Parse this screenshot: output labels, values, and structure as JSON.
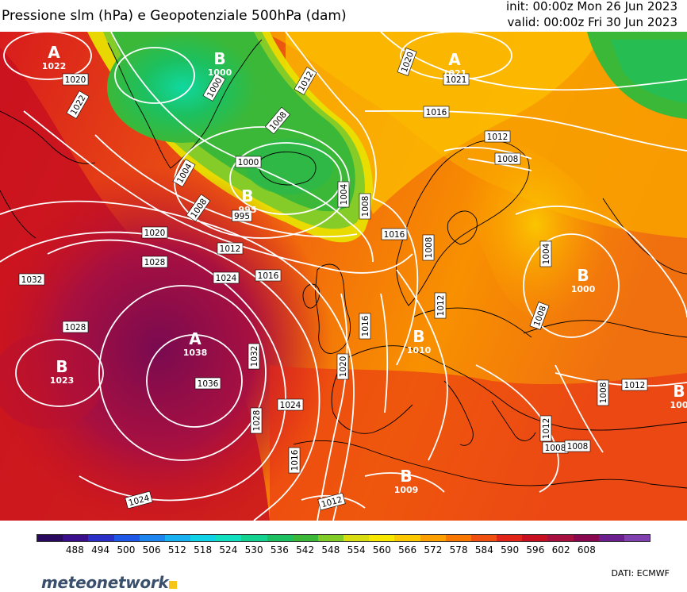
{
  "header": {
    "title": "Pressione slm (hPa) e Geopotenziale 500hPa (dam)",
    "init": "init: 00:00z Mon 26 Jun 2023",
    "valid": "valid: 00:00z Fri 30 Jun 2023"
  },
  "legend": {
    "ticks": [
      "488",
      "494",
      "500",
      "506",
      "512",
      "518",
      "524",
      "530",
      "536",
      "542",
      "548",
      "554",
      "560",
      "566",
      "572",
      "578",
      "584",
      "590",
      "596",
      "602",
      "608"
    ],
    "colors": [
      "#2a0a5e",
      "#3b0f8c",
      "#2a2fc8",
      "#1f58e6",
      "#1e84f0",
      "#19b0f2",
      "#12d2e8",
      "#10e0c0",
      "#14d290",
      "#1cc060",
      "#3cb838",
      "#82cc28",
      "#d8dc10",
      "#f8e800",
      "#fcc800",
      "#fca000",
      "#f87800",
      "#f05010",
      "#e02418",
      "#c81020",
      "#a81040",
      "#8a0850",
      "#6c2090",
      "#8040b0"
    ]
  },
  "map": {
    "isobar_labels": [
      "1022",
      "1020",
      "1000",
      "1012",
      "1020",
      "1021",
      "1016",
      "1008",
      "1004",
      "1000",
      "995",
      "1004",
      "1008",
      "1012",
      "1008",
      "1012",
      "1020",
      "1008",
      "1028",
      "1024",
      "1016",
      "1032",
      "1004",
      "1012",
      "1028",
      "1016",
      "1008",
      "1032",
      "1020",
      "1036",
      "1024",
      "1028",
      "1016",
      "1012",
      "1008",
      "1012",
      "1008",
      "1016",
      "1024",
      "1012",
      "1008",
      "1008"
    ],
    "centers": [
      {
        "letter": "A",
        "pressure": "1022"
      },
      {
        "letter": "B",
        "pressure": "1000"
      },
      {
        "letter": "A",
        "pressure": "1021"
      },
      {
        "letter": "B",
        "pressure": "995"
      },
      {
        "letter": "B",
        "pressure": "1000"
      },
      {
        "letter": "A",
        "pressure": "1038"
      },
      {
        "letter": "B",
        "pressure": "1023"
      },
      {
        "letter": "B",
        "pressure": "1010"
      },
      {
        "letter": "B",
        "pressure": "1009"
      },
      {
        "letter": "B",
        "pressure": "100"
      }
    ]
  },
  "footer": {
    "logo": "meteonetwork",
    "credit": "DATI:  ECMWF"
  }
}
